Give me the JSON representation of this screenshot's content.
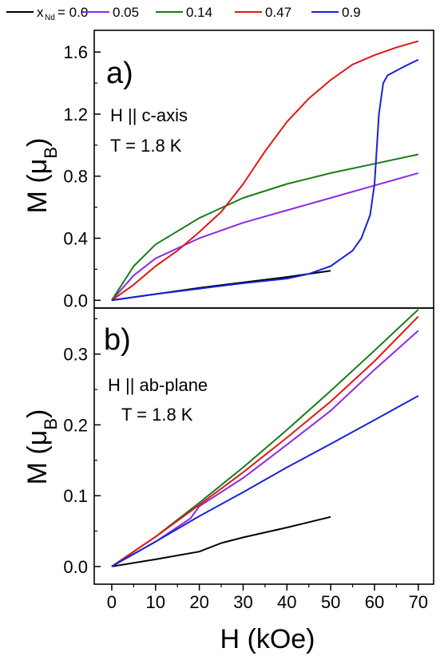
{
  "legend": {
    "prefix": "x",
    "subscript": "Nd",
    "entries": [
      {
        "label": "= 0.0",
        "color": "#000000"
      },
      {
        "label": "0.05",
        "color": "#8b2be2"
      },
      {
        "label": "0.14",
        "color": "#1a7a1a"
      },
      {
        "label": "0.47",
        "color": "#e01818"
      },
      {
        "label": "0.9",
        "color": "#1a22d6"
      }
    ]
  },
  "x_axis": {
    "title": "H (kOe)",
    "ticks": [
      "0",
      "10",
      "20",
      "30",
      "40",
      "50",
      "60",
      "70"
    ]
  },
  "chart_data": [
    {
      "type": "line",
      "panel": "a)",
      "annotations": [
        "H || c-axis",
        "T = 1.8 K"
      ],
      "ylabel": "M (μB)",
      "ylabel_main": "M (μ",
      "ylabel_sub": "B",
      "ylabel_close": ")",
      "xlim": [
        -4,
        73.5
      ],
      "ylim": [
        -0.05,
        1.74
      ],
      "yticks": [
        0.0,
        0.4,
        0.8,
        1.2,
        1.6
      ],
      "ytick_labels": [
        "0.0",
        "0.4",
        "0.8",
        "1.2",
        "1.6"
      ],
      "series": [
        {
          "name": "0.0",
          "color": "#000000",
          "x": [
            0,
            10,
            20,
            30,
            40,
            50
          ],
          "y": [
            0,
            0.04,
            0.08,
            0.115,
            0.15,
            0.19
          ]
        },
        {
          "name": "0.05",
          "color": "#8b2be2",
          "x": [
            0,
            5,
            10,
            20,
            30,
            40,
            50,
            60,
            70
          ],
          "y": [
            0,
            0.16,
            0.27,
            0.4,
            0.5,
            0.58,
            0.66,
            0.74,
            0.82
          ]
        },
        {
          "name": "0.14",
          "color": "#1a7a1a",
          "x": [
            0,
            5,
            10,
            20,
            30,
            40,
            50,
            60,
            70
          ],
          "y": [
            0,
            0.22,
            0.36,
            0.53,
            0.66,
            0.75,
            0.82,
            0.88,
            0.94
          ]
        },
        {
          "name": "0.47",
          "color": "#e01818",
          "x": [
            0,
            5,
            10,
            15,
            20,
            25,
            30,
            35,
            40,
            45,
            50,
            55,
            60,
            65,
            70
          ],
          "y": [
            0,
            0.1,
            0.22,
            0.32,
            0.44,
            0.57,
            0.75,
            0.96,
            1.15,
            1.3,
            1.42,
            1.52,
            1.58,
            1.63,
            1.67
          ]
        },
        {
          "name": "0.9",
          "color": "#1a22d6",
          "x": [
            0,
            10,
            20,
            30,
            35,
            40,
            45,
            50,
            52,
            55,
            57,
            59,
            60,
            61,
            62,
            63,
            65,
            67,
            70
          ],
          "y": [
            0,
            0.04,
            0.075,
            0.11,
            0.125,
            0.14,
            0.17,
            0.22,
            0.26,
            0.32,
            0.4,
            0.55,
            0.75,
            1.2,
            1.4,
            1.45,
            1.48,
            1.51,
            1.55
          ]
        }
      ]
    },
    {
      "type": "line",
      "panel": "b)",
      "annotations": [
        "H || ab-plane",
        "T = 1.8 K"
      ],
      "ylabel": "M (μB)",
      "ylabel_main": "M (μ",
      "ylabel_sub": "B",
      "ylabel_close": ")",
      "xlim": [
        -4,
        73.5
      ],
      "ylim": [
        -0.025,
        0.365
      ],
      "yticks": [
        0.0,
        0.1,
        0.2,
        0.3
      ],
      "ytick_labels": [
        "0.0",
        "0.1",
        "0.2",
        "0.3"
      ],
      "series": [
        {
          "name": "0.0",
          "color": "#000000",
          "x": [
            0,
            10,
            20,
            25,
            30,
            40,
            50
          ],
          "y": [
            0,
            0.01,
            0.021,
            0.033,
            0.041,
            0.055,
            0.07
          ]
        },
        {
          "name": "0.05",
          "color": "#8b2be2",
          "x": [
            0,
            10,
            18,
            20,
            30,
            40,
            50,
            60,
            70
          ],
          "y": [
            0,
            0.035,
            0.068,
            0.085,
            0.125,
            0.172,
            0.22,
            0.278,
            0.333
          ]
        },
        {
          "name": "0.14",
          "color": "#1a7a1a",
          "x": [
            0,
            10,
            20,
            30,
            40,
            50,
            60,
            70
          ],
          "y": [
            0,
            0.042,
            0.09,
            0.14,
            0.193,
            0.248,
            0.305,
            0.363
          ]
        },
        {
          "name": "0.47",
          "color": "#e01818",
          "x": [
            0,
            10,
            20,
            30,
            40,
            50,
            60,
            70
          ],
          "y": [
            0,
            0.042,
            0.087,
            0.133,
            0.182,
            0.233,
            0.29,
            0.353
          ]
        },
        {
          "name": "0.9",
          "color": "#1a22d6",
          "x": [
            0,
            10,
            20,
            30,
            40,
            50,
            60,
            70
          ],
          "y": [
            0,
            0.035,
            0.071,
            0.105,
            0.14,
            0.173,
            0.207,
            0.241
          ]
        }
      ]
    }
  ]
}
